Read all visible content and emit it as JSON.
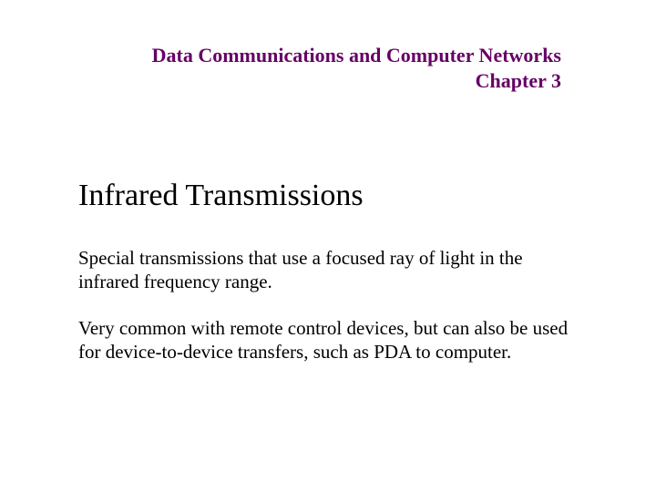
{
  "header": {
    "line1": "Data Communications and Computer Networks",
    "line2": "Chapter 3"
  },
  "content": {
    "title": "Infrared Transmissions",
    "paragraph1": "Special transmissions that use a focused ray of light in the infrared frequency range.",
    "paragraph2": "Very common with remote control devices, but can also be used for device-to-device transfers, such as PDA to computer."
  },
  "colors": {
    "header_text": "#660066",
    "body_text": "#000000",
    "background": "#ffffff"
  },
  "typography": {
    "font_family": "Times New Roman",
    "header_fontsize": 22,
    "header_weight": "bold",
    "title_fontsize": 34,
    "title_weight": "normal",
    "body_fontsize": 21
  }
}
